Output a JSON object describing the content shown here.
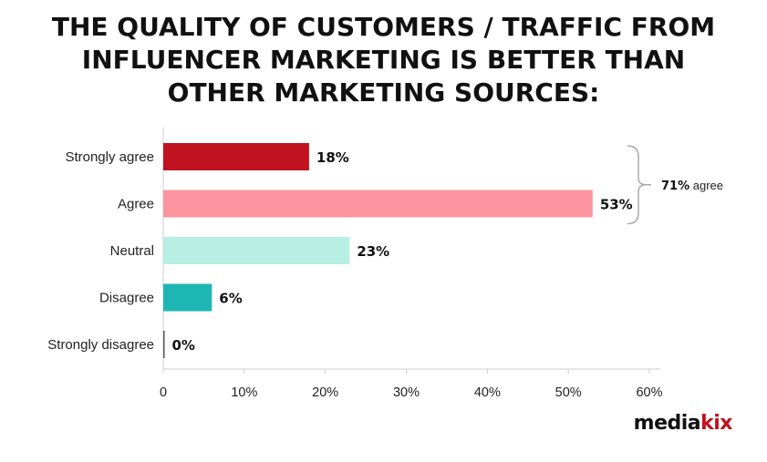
{
  "title": "THE QUALITY OF CUSTOMERS / TRAFFIC FROM\nINFLUENCER MARKETING IS BETTER THAN\nOTHER MARKETING SOURCES:",
  "brand": {
    "part1": "media",
    "part2": "kix"
  },
  "bracket": {
    "value": "71%",
    "label": "agree",
    "spans": [
      "Strongly agree",
      "Agree"
    ]
  },
  "chart_data": {
    "type": "bar",
    "orientation": "horizontal",
    "categories": [
      "Strongly agree",
      "Agree",
      "Neutral",
      "Disagree",
      "Strongly disagree"
    ],
    "values": [
      18,
      53,
      23,
      6,
      0
    ],
    "value_labels": [
      "18%",
      "53%",
      "23%",
      "6%",
      "0%"
    ],
    "colors": [
      "#c1121f",
      "#fb949e",
      "#b8efe3",
      "#1eb6b4",
      "#1eb6b4"
    ],
    "xlim": [
      0,
      60
    ],
    "x_ticks": [
      0,
      10,
      20,
      30,
      40,
      50,
      60
    ],
    "x_tick_labels": [
      "0",
      "10%",
      "20%",
      "30%",
      "40%",
      "50%",
      "60%"
    ],
    "grid": false
  }
}
